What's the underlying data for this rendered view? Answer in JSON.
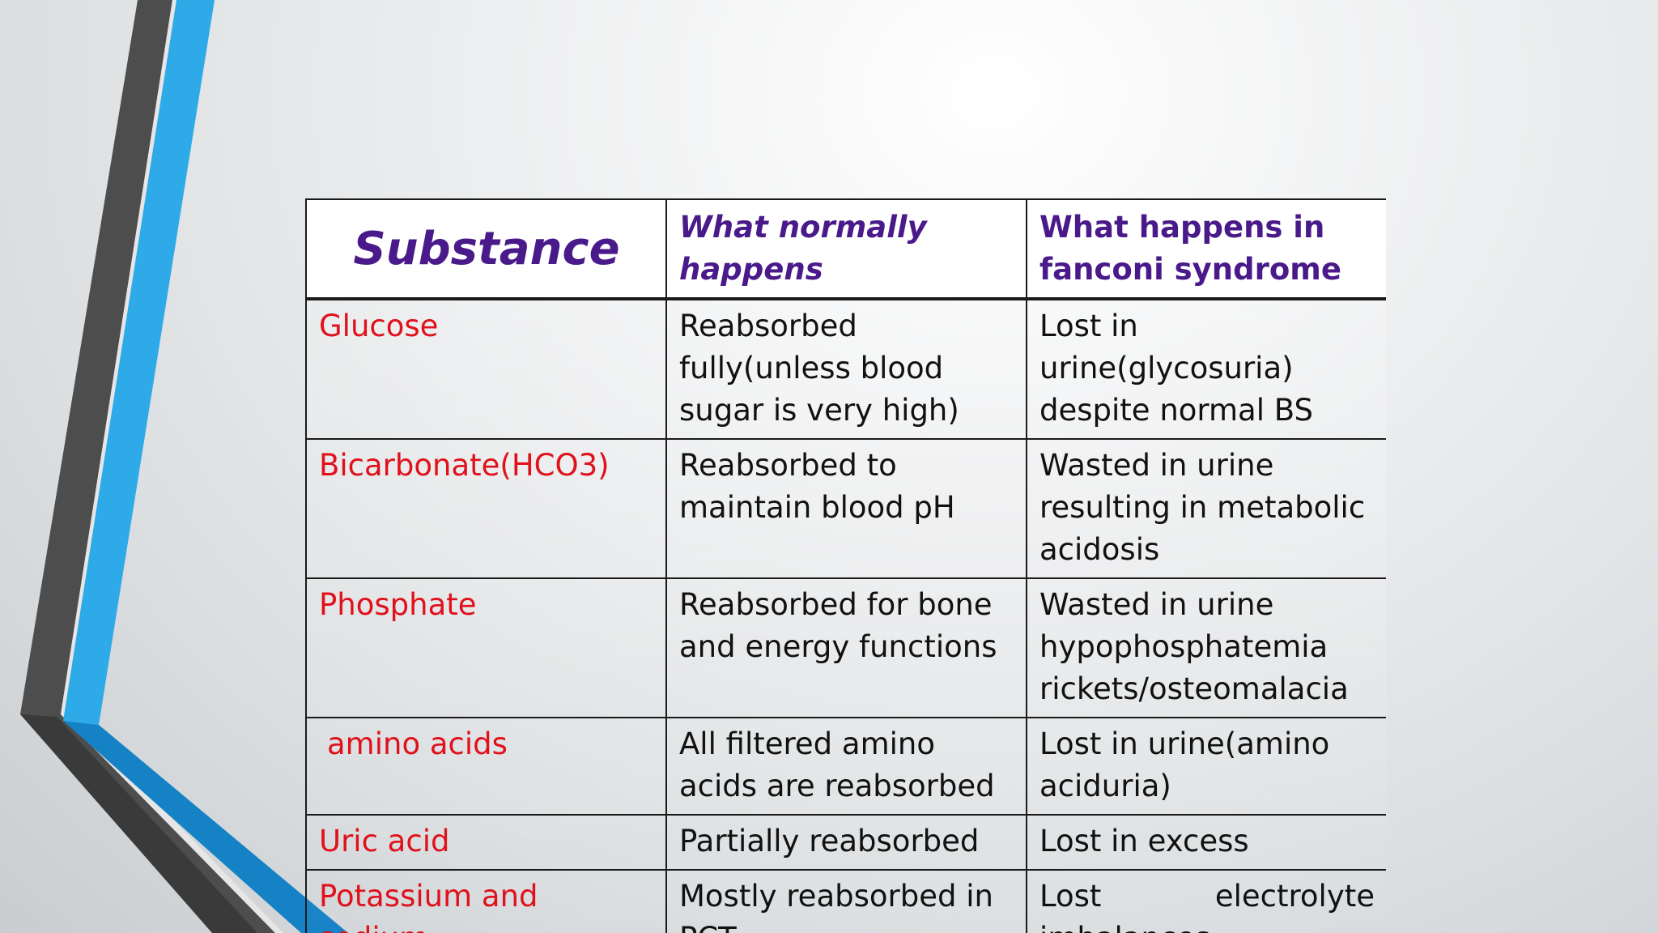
{
  "colors": {
    "header_text": "#4a1a8a",
    "substance_text": "#e0111b",
    "body_text": "#111111",
    "accent_blue": "#2aa6e6",
    "accent_dark_blue": "#1480c4",
    "accent_gray": "#4a4a4a"
  },
  "table": {
    "headers": [
      "Substance",
      "What normally happens",
      "What happens in fanconi syndrome"
    ],
    "rows": [
      {
        "substance": "Glucose",
        "normal": "Reabsorbed fully(unless blood sugar is very high)",
        "fanconi": "Lost in urine(glycosuria) despite normal BS"
      },
      {
        "substance": "Bicarbonate(HCO3)",
        "normal": "Reabsorbed to maintain blood pH",
        "fanconi": "Wasted in urine resulting in metabolic acidosis"
      },
      {
        "substance": "Phosphate",
        "normal": "Reabsorbed for bone and energy functions",
        "fanconi": "Wasted in urine hypophosphatemia rickets/osteomalacia"
      },
      {
        "substance": "amino acids",
        "normal": "All filtered amino acids are reabsorbed",
        "fanconi": "Lost in urine(amino aciduria)"
      },
      {
        "substance": "Uric acid",
        "normal": "Partially reabsorbed",
        "fanconi": "Lost in excess"
      },
      {
        "substance": "Potassium and sodium",
        "normal": "Mostly reabsorbed in PCT",
        "fanconi": "Lost electrolyte imbalances"
      }
    ]
  }
}
